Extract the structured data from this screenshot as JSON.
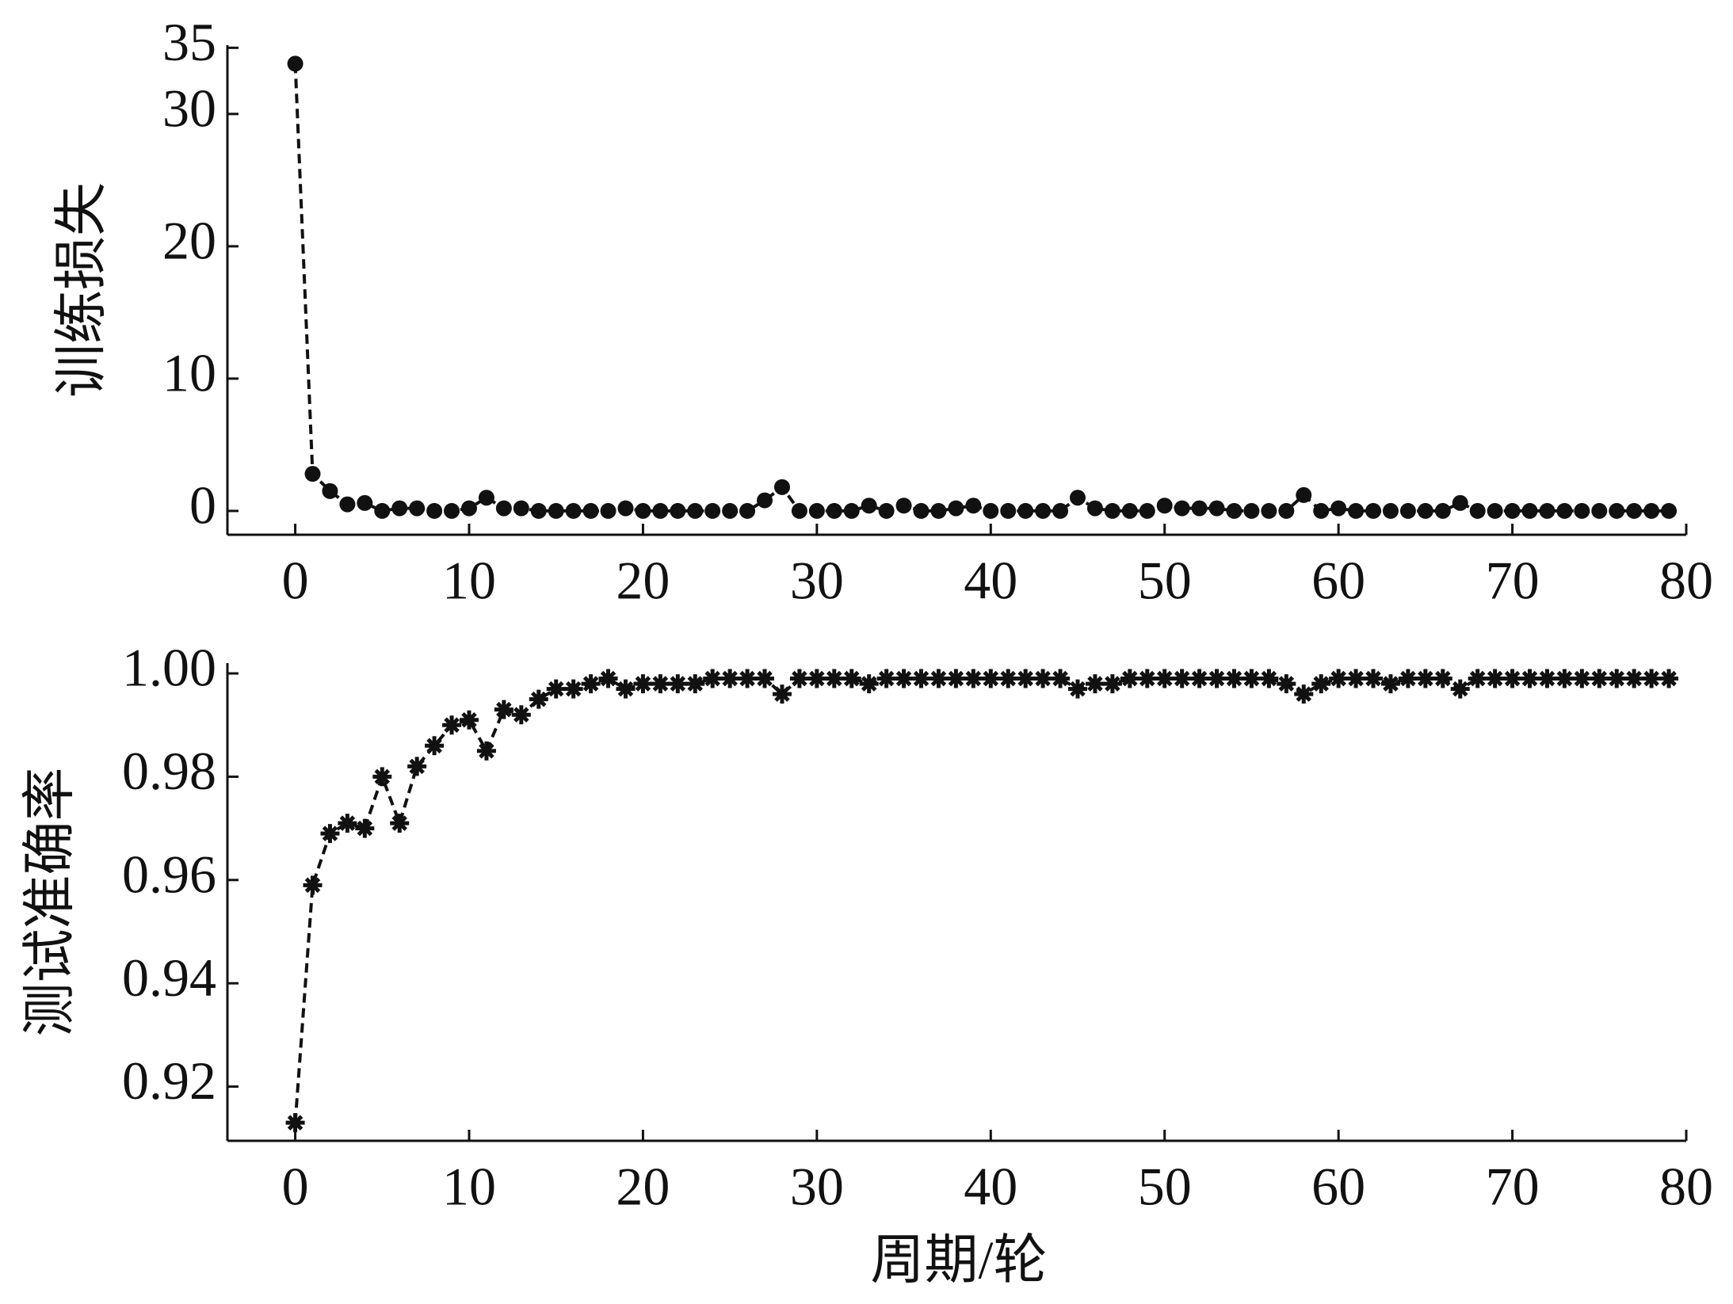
{
  "chart_data": [
    {
      "type": "line",
      "y_label": "训练损失",
      "x": [
        0,
        1,
        2,
        3,
        4,
        5,
        6,
        7,
        8,
        9,
        10,
        11,
        12,
        13,
        14,
        15,
        16,
        17,
        18,
        19,
        20,
        21,
        22,
        23,
        24,
        25,
        26,
        27,
        28,
        29,
        30,
        31,
        32,
        33,
        34,
        35,
        36,
        37,
        38,
        39,
        40,
        41,
        42,
        43,
        44,
        45,
        46,
        47,
        48,
        49,
        50,
        51,
        52,
        53,
        54,
        55,
        56,
        57,
        58,
        59,
        60,
        61,
        62,
        63,
        64,
        65,
        66,
        67,
        68,
        69,
        70,
        71,
        72,
        73,
        74,
        75,
        76,
        77,
        78,
        79
      ],
      "series": [
        {
          "color": "#111111",
          "marker": "circle",
          "values": [
            33.8,
            2.8,
            1.5,
            0.5,
            0.6,
            0,
            0.2,
            0.2,
            0,
            0,
            0.2,
            1.0,
            0.2,
            0.2,
            0,
            0,
            0,
            0,
            0,
            0.2,
            0,
            0,
            0,
            0,
            0,
            0,
            0,
            0.8,
            1.8,
            0,
            0,
            0,
            0,
            0.4,
            0,
            0.4,
            0,
            0,
            0.2,
            0.4,
            0,
            0,
            0,
            0,
            0,
            1.0,
            0.2,
            0,
            0,
            0,
            0.4,
            0.2,
            0.2,
            0.2,
            0,
            0,
            0,
            0,
            1.2,
            0,
            0.2,
            0,
            0,
            0,
            0,
            0,
            0,
            0.6,
            0,
            0,
            0,
            0,
            0,
            0,
            0,
            0,
            0,
            0,
            0,
            0
          ]
        }
      ],
      "xlim": [
        -3.9,
        80
      ],
      "xticks": [
        0,
        10,
        20,
        30,
        40,
        50,
        60,
        70,
        80
      ],
      "ylim": [
        -1.8,
        35.2
      ],
      "yticks": [
        0,
        10,
        20,
        30,
        35
      ]
    },
    {
      "type": "line",
      "x_label": "周期/轮",
      "y_label": "测试准确率",
      "x": [
        0,
        1,
        2,
        3,
        4,
        5,
        6,
        7,
        8,
        9,
        10,
        11,
        12,
        13,
        14,
        15,
        16,
        17,
        18,
        19,
        20,
        21,
        22,
        23,
        24,
        25,
        26,
        27,
        28,
        29,
        30,
        31,
        32,
        33,
        34,
        35,
        36,
        37,
        38,
        39,
        40,
        41,
        42,
        43,
        44,
        45,
        46,
        47,
        48,
        49,
        50,
        51,
        52,
        53,
        54,
        55,
        56,
        57,
        58,
        59,
        60,
        61,
        62,
        63,
        64,
        65,
        66,
        67,
        68,
        69,
        70,
        71,
        72,
        73,
        74,
        75,
        76,
        77,
        78,
        79
      ],
      "series": [
        {
          "color": "#111111",
          "marker": "star",
          "values": [
            0.913,
            0.959,
            0.969,
            0.971,
            0.97,
            0.98,
            0.971,
            0.982,
            0.986,
            0.99,
            0.991,
            0.985,
            0.993,
            0.992,
            0.995,
            0.997,
            0.997,
            0.998,
            0.999,
            0.997,
            0.998,
            0.998,
            0.998,
            0.998,
            0.999,
            0.999,
            0.999,
            0.999,
            0.996,
            0.999,
            0.999,
            0.999,
            0.999,
            0.998,
            0.999,
            0.999,
            0.999,
            0.999,
            0.999,
            0.999,
            0.999,
            0.999,
            0.999,
            0.999,
            0.999,
            0.997,
            0.998,
            0.998,
            0.999,
            0.999,
            0.999,
            0.999,
            0.999,
            0.999,
            0.999,
            0.999,
            0.999,
            0.998,
            0.996,
            0.998,
            0.999,
            0.999,
            0.999,
            0.998,
            0.999,
            0.999,
            0.999,
            0.997,
            0.999,
            0.999,
            0.999,
            0.999,
            0.999,
            0.999,
            0.999,
            0.999,
            0.999,
            0.999,
            0.999,
            0.999
          ]
        }
      ],
      "xlim": [
        -3.9,
        80
      ],
      "xticks": [
        0,
        10,
        20,
        30,
        40,
        50,
        60,
        70,
        80
      ],
      "ylim": [
        0.9095,
        1.002
      ],
      "yticks": [
        0.92,
        0.94,
        0.96,
        0.98,
        {
          "value": 1,
          "label": "1.00"
        }
      ]
    }
  ]
}
